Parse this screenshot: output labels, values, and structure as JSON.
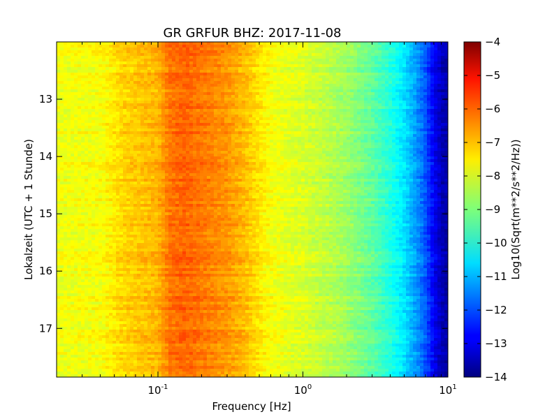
{
  "chart_data": {
    "type": "heatmap",
    "title": "GR GRFUR BHZ: 2017-11-08",
    "xlabel": "Frequency [Hz]",
    "ylabel": "Lokalzeit (UTC + 1 Stunde)",
    "x_scale": "log",
    "xlim": [
      0.02,
      10
    ],
    "ylim": [
      12.0,
      17.85
    ],
    "y_inverted": true,
    "x_ticks": [
      {
        "value": 0.1,
        "base": "10",
        "exp": "-1"
      },
      {
        "value": 1,
        "base": "10",
        "exp": "0"
      },
      {
        "value": 10,
        "base": "10",
        "exp": "1"
      }
    ],
    "y_ticks": [
      {
        "value": 13,
        "label": "13"
      },
      {
        "value": 14,
        "label": "14"
      },
      {
        "value": 15,
        "label": "15"
      },
      {
        "value": 16,
        "label": "16"
      },
      {
        "value": 17,
        "label": "17"
      }
    ],
    "colorbar": {
      "label": "Log10(Sqrt(m**2/s**2/Hz))",
      "min": -14,
      "max": -4,
      "ticks": [
        {
          "value": -4,
          "label": "−4"
        },
        {
          "value": -5,
          "label": "−5"
        },
        {
          "value": -6,
          "label": "−6"
        },
        {
          "value": -7,
          "label": "−7"
        },
        {
          "value": -8,
          "label": "−8"
        },
        {
          "value": -9,
          "label": "−9"
        },
        {
          "value": -10,
          "label": "−10"
        },
        {
          "value": -11,
          "label": "−11"
        },
        {
          "value": -12,
          "label": "−12"
        },
        {
          "value": -13,
          "label": "−13"
        },
        {
          "value": -14,
          "label": "−14"
        }
      ]
    },
    "spectrum_profile": [
      {
        "f": 0.02,
        "v": -7.9
      },
      {
        "f": 0.04,
        "v": -7.8
      },
      {
        "f": 0.06,
        "v": -7.3
      },
      {
        "f": 0.1,
        "v": -7.0
      },
      {
        "f": 0.12,
        "v": -6.4
      },
      {
        "f": 0.15,
        "v": -6.2
      },
      {
        "f": 0.2,
        "v": -6.4
      },
      {
        "f": 0.3,
        "v": -6.7
      },
      {
        "f": 0.4,
        "v": -7.1
      },
      {
        "f": 0.5,
        "v": -7.5
      },
      {
        "f": 0.6,
        "v": -7.8
      },
      {
        "f": 0.8,
        "v": -8.0
      },
      {
        "f": 1.0,
        "v": -8.1
      },
      {
        "f": 1.5,
        "v": -8.4
      },
      {
        "f": 2.0,
        "v": -8.7
      },
      {
        "f": 3.0,
        "v": -9.3
      },
      {
        "f": 4.0,
        "v": -9.9
      },
      {
        "f": 5.0,
        "v": -10.5
      },
      {
        "f": 6.0,
        "v": -11.2
      },
      {
        "f": 7.0,
        "v": -11.9
      },
      {
        "f": 8.0,
        "v": -12.8
      },
      {
        "f": 9.0,
        "v": -13.4
      },
      {
        "f": 10.0,
        "v": -13.6
      }
    ]
  }
}
